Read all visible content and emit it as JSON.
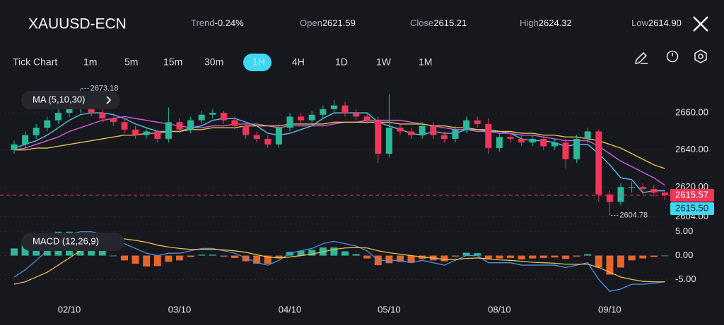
{
  "header": {
    "symbol": "XAUUSD-ECN",
    "stats": [
      {
        "label": "Trend",
        "value": "-0.24%"
      },
      {
        "label": "Open",
        "value": "2621.59"
      },
      {
        "label": "Close",
        "value": "2615.21"
      },
      {
        "label": "High",
        "value": "2624.32"
      },
      {
        "label": "Low",
        "value": "2614.90"
      }
    ]
  },
  "timeframes": [
    "Tick Chart",
    "1m",
    "5m",
    "15m",
    "30m",
    "1H",
    "4H",
    "1D",
    "1W",
    "1M"
  ],
  "active_timeframe": 5,
  "chart_data": [
    {
      "type": "candlestick",
      "legend": "MA (5,10,30)",
      "up_color": "#2bb89a",
      "down_color": "#f0365a",
      "open": [
        2640,
        2643,
        2648,
        2652,
        2656,
        2660,
        2662,
        2663,
        2660,
        2657,
        2655,
        2651,
        2648,
        2650,
        2646,
        2655,
        2651,
        2656,
        2659,
        2660,
        2656,
        2653,
        2648,
        2646,
        2643,
        2652,
        2658,
        2656,
        2659,
        2662,
        2664,
        2660,
        2658,
        2656,
        2638,
        2652,
        2650,
        2648,
        2653,
        2648,
        2646,
        2651,
        2656,
        2654,
        2641,
        2647,
        2646,
        2644,
        2646,
        2642,
        2644,
        2635,
        2646,
        2650,
        2616,
        2612,
        2620,
        2620,
        2619,
        2617
      ],
      "high": [
        2645,
        2650,
        2654,
        2658,
        2662,
        2664,
        2673.18,
        2665,
        2662,
        2658,
        2657,
        2653,
        2652,
        2651,
        2663,
        2657,
        2658,
        2661,
        2662,
        2661,
        2658,
        2655,
        2650,
        2648,
        2654,
        2660,
        2660,
        2661,
        2664,
        2667,
        2666,
        2662,
        2660,
        2658,
        2670,
        2654,
        2652,
        2655,
        2655,
        2650,
        2653,
        2658,
        2658,
        2657,
        2649,
        2649,
        2648,
        2648,
        2648,
        2646,
        2646,
        2648,
        2652,
        2651,
        2618,
        2622,
        2623,
        2622,
        2621,
        2618
      ],
      "low": [
        2638,
        2641,
        2646,
        2650,
        2654,
        2658,
        2660,
        2658,
        2655,
        2653,
        2649,
        2646,
        2646,
        2644,
        2644,
        2649,
        2649,
        2654,
        2657,
        2654,
        2651,
        2646,
        2644,
        2641,
        2641,
        2650,
        2654,
        2654,
        2657,
        2660,
        2658,
        2656,
        2654,
        2633,
        2636,
        2648,
        2646,
        2646,
        2646,
        2644,
        2644,
        2649,
        2652,
        2638,
        2639,
        2644,
        2642,
        2642,
        2640,
        2640,
        2630,
        2633,
        2644,
        2612,
        2604.78,
        2610,
        2617,
        2616,
        2615,
        2613
      ],
      "close": [
        2643,
        2648,
        2652,
        2656,
        2660,
        2662,
        2663,
        2660,
        2657,
        2655,
        2651,
        2648,
        2650,
        2646,
        2655,
        2651,
        2656,
        2659,
        2660,
        2656,
        2653,
        2648,
        2646,
        2643,
        2652,
        2658,
        2656,
        2659,
        2662,
        2664,
        2660,
        2658,
        2656,
        2638,
        2652,
        2650,
        2648,
        2653,
        2648,
        2646,
        2651,
        2656,
        2654,
        2641,
        2647,
        2646,
        2644,
        2646,
        2642,
        2644,
        2635,
        2646,
        2650,
        2616,
        2612,
        2620,
        2620,
        2619,
        2617,
        2615.57
      ],
      "series": [
        {
          "color": "#55c3e6",
          "values": [
            2641,
            2643,
            2645,
            2648,
            2652,
            2656,
            2659,
            2660,
            2660,
            2659,
            2657,
            2654,
            2652,
            2650,
            2650,
            2650,
            2652,
            2653,
            2656,
            2657,
            2657,
            2655,
            2653,
            2649,
            2648,
            2649,
            2651,
            2653,
            2657,
            2660,
            2660,
            2660,
            2660,
            2655,
            2653,
            2651,
            2649,
            2648,
            2650,
            2649,
            2649,
            2651,
            2651,
            2650,
            2650,
            2649,
            2646,
            2645,
            2645,
            2644,
            2642,
            2643,
            2643,
            2638,
            2632,
            2625,
            2624,
            2617,
            2618,
            2618
          ]
        },
        {
          "color": "#d25ed8",
          "values": [
            2640,
            2641,
            2643,
            2645,
            2647,
            2650,
            2652,
            2654,
            2656,
            2657,
            2658,
            2657,
            2656,
            2655,
            2654,
            2653,
            2652,
            2652,
            2653,
            2653,
            2654,
            2654,
            2654,
            2653,
            2652,
            2653,
            2653,
            2653,
            2653,
            2654,
            2655,
            2655,
            2656,
            2656,
            2656,
            2656,
            2655,
            2654,
            2653,
            2652,
            2651,
            2651,
            2650,
            2650,
            2649,
            2649,
            2648,
            2648,
            2647,
            2646,
            2645,
            2645,
            2645,
            2642,
            2638,
            2634,
            2631,
            2628,
            2625,
            2621
          ]
        },
        {
          "color": "#e3c24f",
          "values": [
            2640,
            2640,
            2641,
            2641,
            2642,
            2643,
            2644,
            2645,
            2646,
            2647,
            2648,
            2648,
            2649,
            2649,
            2650,
            2650,
            2651,
            2651,
            2652,
            2652,
            2652,
            2653,
            2653,
            2653,
            2653,
            2654,
            2654,
            2654,
            2654,
            2655,
            2655,
            2655,
            2655,
            2655,
            2655,
            2654,
            2654,
            2654,
            2653,
            2653,
            2652,
            2652,
            2651,
            2651,
            2650,
            2650,
            2649,
            2649,
            2648,
            2648,
            2647,
            2647,
            2646,
            2645,
            2643,
            2641,
            2638,
            2635,
            2632,
            2630
          ]
        }
      ],
      "ylim": [
        2600,
        2676
      ],
      "yticks": [
        {
          "value": 2604,
          "label": "2604.00"
        },
        {
          "value": 2620,
          "label": "2620.00"
        },
        {
          "value": 2640,
          "label": "2640.00"
        },
        {
          "value": 2660,
          "label": "2660.00"
        }
      ],
      "last_price": 2615.57,
      "bid_price": {
        "value": 2615.5,
        "label": "2615.50"
      },
      "max_label": 2673.18,
      "min_label": 2604.78,
      "grid": true
    },
    {
      "type": "macd",
      "legend": "MACD (12,26,9)",
      "categories": [
        null,
        null,
        null,
        null,
        null,
        "02/10",
        null,
        null,
        null,
        null,
        null,
        null,
        null,
        null,
        null,
        "03/10",
        null,
        null,
        null,
        null,
        null,
        null,
        null,
        null,
        null,
        "04/10",
        null,
        null,
        null,
        null,
        null,
        null,
        null,
        null,
        "05/10",
        null,
        null,
        null,
        null,
        null,
        null,
        null,
        null,
        null,
        "08/10",
        null,
        null,
        null,
        null,
        null,
        null,
        null,
        null,
        null,
        "09/10",
        null,
        null,
        null,
        null,
        null
      ],
      "histogram": [
        1.5,
        2.5,
        3.5,
        4.5,
        5,
        5,
        4,
        3,
        1.5,
        0,
        -1,
        -1.7,
        -2.3,
        -2.2,
        -1.3,
        -1,
        -0.3,
        0.2,
        0.2,
        -0.2,
        -0.5,
        -1.2,
        -1.7,
        -1.7,
        -0.5,
        0.8,
        1,
        1.2,
        1.7,
        1.7,
        0.9,
        0.3,
        -0.6,
        -2,
        -1.6,
        -1.3,
        -1.5,
        -0.7,
        -1,
        -1.2,
        -0.2,
        0.6,
        0.5,
        -0.8,
        -0.6,
        -0.5,
        -0.8,
        -0.6,
        -0.5,
        -0.4,
        -0.7,
        -0.2,
        0.3,
        -2.5,
        -4,
        -2.5,
        -1,
        -0.6,
        -0.3,
        0
      ],
      "pos_color": "#2bb89a",
      "neg_color": "#e8652a",
      "series": [
        {
          "color": "#4f8fe0",
          "values": [
            -4.5,
            -3,
            -1,
            1,
            3,
            4.5,
            5,
            5,
            4.5,
            3.5,
            2.5,
            1.5,
            0.5,
            0,
            0.5,
            0.5,
            1,
            1.5,
            1.5,
            1,
            0.5,
            -0.5,
            -1.5,
            -2,
            -1,
            0.5,
            1,
            1.5,
            2.5,
            3,
            2.5,
            2,
            1,
            -1,
            -1,
            -1,
            -1.5,
            -1,
            -1.5,
            -2,
            -1,
            0,
            0,
            -1.5,
            -1.5,
            -1.5,
            -2,
            -2,
            -2,
            -2,
            -2.5,
            -2,
            -1.5,
            -5,
            -7.5,
            -7,
            -6,
            -6,
            -5.8,
            -5.5
          ]
        },
        {
          "color": "#e3c24f",
          "values": [
            -6,
            -5.5,
            -4.5,
            -3.5,
            -2,
            -0.5,
            1,
            2,
            3,
            3.5,
            3.5,
            3.2,
            2.8,
            2.2,
            1.8,
            1.5,
            1.3,
            1.3,
            1.3,
            1.2,
            1,
            0.7,
            0.2,
            -0.3,
            -0.5,
            -0.3,
            0,
            0.3,
            0.8,
            1.3,
            1.6,
            1.7,
            1.6,
            1,
            0.6,
            0.3,
            0,
            -0.3,
            -0.5,
            -0.8,
            -0.8,
            -0.6,
            -0.5,
            -0.7,
            -0.9,
            -1,
            -1.2,
            -1.4,
            -1.5,
            -1.6,
            -1.8,
            -1.8,
            -1.8,
            -2.5,
            -3.5,
            -4.5,
            -5,
            -5.4,
            -5.5,
            -5.5
          ]
        }
      ],
      "ylim": [
        -8.5,
        6
      ],
      "yticks": [
        {
          "value": -5,
          "label": "-5.00"
        },
        {
          "value": 0,
          "label": "0.00"
        },
        {
          "value": 5,
          "label": "5.00"
        }
      ]
    }
  ]
}
